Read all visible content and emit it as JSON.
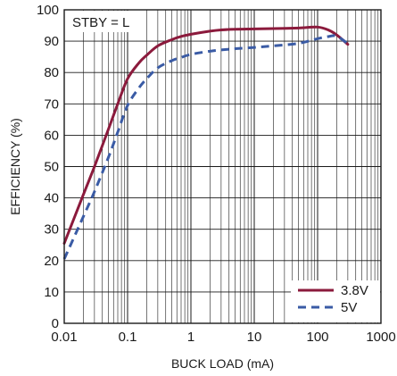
{
  "chart_data": {
    "type": "line",
    "title": "",
    "xlabel": "BUCK LOAD (mA)",
    "ylabel": "EFFICIENCY (%)",
    "xscale": "log",
    "xlim": [
      0.01,
      1000
    ],
    "ylim": [
      0,
      100
    ],
    "x_ticks": [
      "0.01",
      "0.1",
      "1",
      "10",
      "100",
      "1000"
    ],
    "y_ticks": [
      "0",
      "10",
      "20",
      "30",
      "40",
      "50",
      "60",
      "70",
      "80",
      "90",
      "100"
    ],
    "grid": true,
    "legend_position": "bottom-right",
    "annotation": "STBY = L",
    "series": [
      {
        "name": "3.8V",
        "style": "solid",
        "color": "#8b1a3c",
        "x": [
          0.01,
          0.02,
          0.03,
          0.05,
          0.07,
          0.1,
          0.15,
          0.2,
          0.3,
          0.5,
          0.7,
          1,
          2,
          3,
          5,
          10,
          20,
          50,
          100,
          150,
          200,
          300
        ],
        "y": [
          25.5,
          41,
          50,
          62,
          70,
          78,
          83,
          85.5,
          88.5,
          90.5,
          91.5,
          92.2,
          93.2,
          93.6,
          93.8,
          93.9,
          94,
          94.2,
          94.5,
          93.5,
          92,
          89
        ]
      },
      {
        "name": "5V",
        "style": "dashed",
        "color": "#3a5ba5",
        "x": [
          0.01,
          0.02,
          0.03,
          0.05,
          0.07,
          0.1,
          0.15,
          0.2,
          0.3,
          0.5,
          0.7,
          1,
          2,
          3,
          5,
          10,
          20,
          50,
          100,
          150,
          200,
          300
        ],
        "y": [
          20.5,
          34,
          42,
          53,
          61,
          69.5,
          75,
          78,
          81.5,
          83.8,
          84.8,
          85.8,
          86.8,
          87.2,
          87.6,
          88,
          88.5,
          89.3,
          90.8,
          91.5,
          91.6,
          89.2
        ]
      }
    ]
  }
}
